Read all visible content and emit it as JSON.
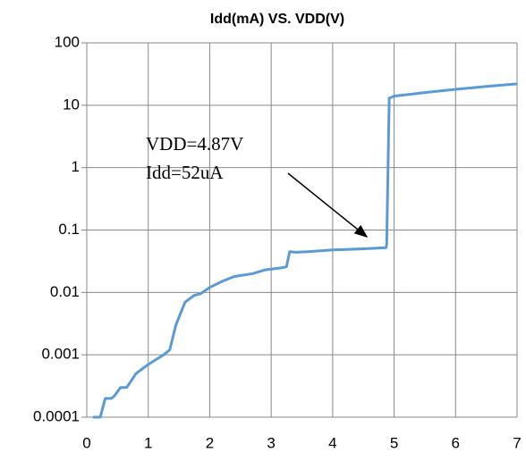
{
  "chart_data": {
    "type": "line",
    "title": "Idd(mA) VS. VDD(V)",
    "x": [
      0.1,
      0.22,
      0.3,
      0.4,
      0.45,
      0.55,
      0.65,
      0.8,
      1.0,
      1.25,
      1.35,
      1.45,
      1.6,
      1.75,
      1.85,
      2.0,
      2.2,
      2.4,
      2.7,
      2.9,
      3.2,
      3.25,
      3.3,
      3.4,
      3.6,
      4.0,
      4.5,
      4.87,
      4.88,
      4.92,
      5.0,
      5.5,
      6.0,
      6.5,
      7.0
    ],
    "values": [
      0.0001,
      0.0001,
      0.0002,
      0.0002,
      0.00022,
      0.0003,
      0.0003,
      0.0005,
      0.0007,
      0.001,
      0.0012,
      0.003,
      0.007,
      0.009,
      0.0095,
      0.012,
      0.015,
      0.018,
      0.02,
      0.023,
      0.025,
      0.026,
      0.045,
      0.044,
      0.045,
      0.048,
      0.05,
      0.052,
      0.06,
      13,
      14,
      16,
      18,
      20,
      22
    ],
    "color": "#5b9bd5",
    "xlim": [
      0,
      7
    ],
    "xticks": [
      0,
      1,
      2,
      3,
      4,
      5,
      6,
      7
    ],
    "ylim": [
      0.0001,
      100
    ],
    "yticks": [
      0.0001,
      0.001,
      0.01,
      0.1,
      1,
      10,
      100
    ],
    "yscale": "log",
    "grid": true,
    "annotation": [
      "VDD=4.87V",
      "Idd=52uA"
    ]
  }
}
